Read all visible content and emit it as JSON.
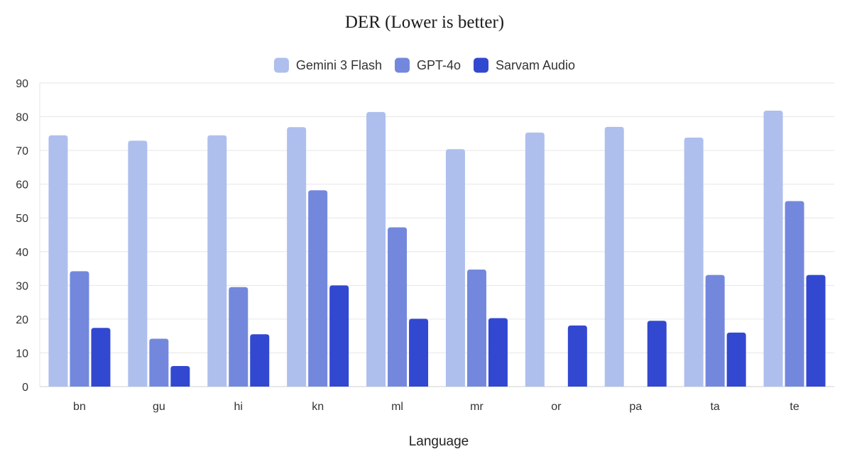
{
  "chart_data": {
    "type": "bar",
    "title": "DER (Lower is better)",
    "xlabel": "Language",
    "ylabel": "",
    "ylim": [
      0,
      90
    ],
    "yticks": [
      0,
      10,
      20,
      30,
      40,
      50,
      60,
      70,
      80,
      90
    ],
    "grid": true,
    "legend_position": "top-center",
    "categories": [
      "bn",
      "gu",
      "hi",
      "kn",
      "ml",
      "mr",
      "or",
      "pa",
      "ta",
      "te"
    ],
    "series": [
      {
        "name": "Gemini 3 Flash",
        "color": "#aebfee",
        "values": [
          74.5,
          72.9,
          74.5,
          76.9,
          81.4,
          70.4,
          75.3,
          77.0,
          73.8,
          81.8
        ]
      },
      {
        "name": "GPT-4o",
        "color": "#7388dd",
        "values": [
          34.2,
          14.2,
          29.5,
          58.2,
          47.2,
          34.7,
          null,
          null,
          33.1,
          55.0
        ]
      },
      {
        "name": "Sarvam Audio",
        "color": "#3248d0",
        "values": [
          17.4,
          6.1,
          15.5,
          30.0,
          20.1,
          20.3,
          18.1,
          19.5,
          16.0,
          33.1
        ]
      }
    ]
  }
}
